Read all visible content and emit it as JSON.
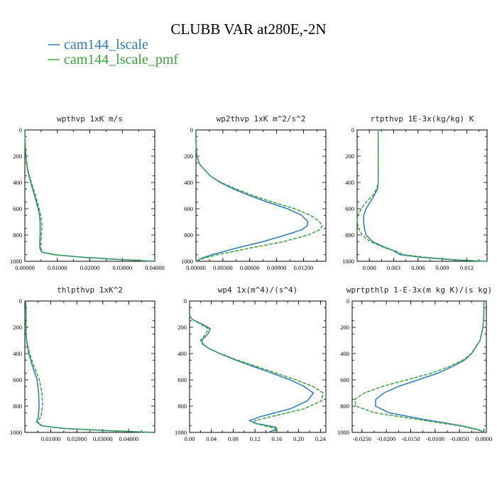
{
  "figure": {
    "title": "CLUBB VAR at280E,-2N",
    "legend": [
      {
        "label": "cam144_lscale",
        "color": "#2a7ab8"
      },
      {
        "label": "cam144_lscale_pmf",
        "color": "#3aa33a"
      }
    ]
  },
  "chart_data": [
    {
      "type": "line",
      "title": "wpthvp  1xK m/s",
      "xlim": [
        0,
        0.04
      ],
      "ylim": [
        1000,
        0
      ],
      "xticks": [
        "0.00000",
        "0.01000",
        "0.02000",
        "0.03000",
        "0.04000"
      ],
      "xtick_values": [
        0,
        0.01,
        0.02,
        0.03,
        0.04
      ],
      "yticks": [
        "0",
        "200",
        "400",
        "600",
        "800",
        "1000"
      ],
      "ytick_values": [
        0,
        200,
        400,
        600,
        800,
        1000
      ],
      "series": [
        {
          "name": "cam144_lscale",
          "color": "#2a7ab8",
          "dashed": false,
          "y": [
            0,
            100,
            200,
            300,
            400,
            500,
            600,
            650,
            700,
            750,
            800,
            850,
            900,
            930,
            950,
            970,
            985,
            995,
            1000
          ],
          "x": [
            0.0,
            0.0001,
            0.0003,
            0.0008,
            0.0018,
            0.003,
            0.0041,
            0.0045,
            0.0047,
            0.0047,
            0.0047,
            0.0046,
            0.0046,
            0.0052,
            0.009,
            0.018,
            0.028,
            0.036,
            0.0395
          ]
        },
        {
          "name": "cam144_lscale_pmf",
          "color": "#3aa33a",
          "dashed": true,
          "y": [
            0,
            100,
            200,
            300,
            400,
            500,
            600,
            650,
            700,
            750,
            800,
            850,
            900,
            930,
            950,
            970,
            985,
            995,
            1000
          ],
          "x": [
            0.0,
            0.0001,
            0.0003,
            0.0009,
            0.002,
            0.0033,
            0.0044,
            0.0049,
            0.0052,
            0.0052,
            0.0051,
            0.005,
            0.0049,
            0.0055,
            0.0093,
            0.0185,
            0.0285,
            0.0362,
            0.0398
          ]
        }
      ]
    },
    {
      "type": "line",
      "title": "wp2thvp  1xK m^2/s^2",
      "xlim": [
        0,
        0.0145
      ],
      "ylim": [
        1000,
        0
      ],
      "xticks": [
        "0.00000",
        "0.00300",
        "0.00600",
        "0.00900",
        "0.01200"
      ],
      "xtick_values": [
        0,
        0.003,
        0.006,
        0.009,
        0.012
      ],
      "yticks": [
        "0",
        "200",
        "400",
        "600",
        "800",
        "1000"
      ],
      "ytick_values": [
        0,
        200,
        400,
        600,
        800,
        1000
      ],
      "series": [
        {
          "name": "cam144_lscale",
          "color": "#2a7ab8",
          "dashed": false,
          "y": [
            0,
            100,
            200,
            260,
            300,
            350,
            400,
            450,
            500,
            550,
            600,
            650,
            700,
            730,
            760,
            800,
            850,
            900,
            950,
            980,
            1000
          ],
          "x": [
            0.0,
            0.0,
            0.0001,
            0.0004,
            0.0009,
            0.0016,
            0.0027,
            0.0042,
            0.006,
            0.008,
            0.0102,
            0.0118,
            0.0125,
            0.0124,
            0.0118,
            0.01,
            0.0075,
            0.0045,
            0.0018,
            0.0005,
            0.0
          ]
        },
        {
          "name": "cam144_lscale_pmf",
          "color": "#3aa33a",
          "dashed": true,
          "y": [
            0,
            100,
            200,
            260,
            300,
            350,
            400,
            450,
            500,
            550,
            600,
            650,
            700,
            730,
            760,
            800,
            850,
            900,
            950,
            980,
            1000
          ],
          "x": [
            0.0,
            0.0,
            0.0001,
            0.0004,
            0.0009,
            0.0016,
            0.0028,
            0.0045,
            0.0064,
            0.0086,
            0.011,
            0.0128,
            0.0138,
            0.0141,
            0.0138,
            0.0125,
            0.0098,
            0.006,
            0.0024,
            0.0007,
            0.0
          ]
        }
      ]
    },
    {
      "type": "line",
      "title": "rtpthvp  1E-3x(kg/kg) K",
      "xlim": [
        -0.0015,
        0.0145
      ],
      "ylim": [
        1000,
        0
      ],
      "xticks": [
        "0.000",
        "0.003",
        "0.006",
        "0.009",
        "0.012"
      ],
      "xtick_values": [
        0,
        0.003,
        0.006,
        0.009,
        0.012
      ],
      "yticks": [
        "0",
        "200",
        "400",
        "600",
        "800",
        "1000"
      ],
      "ytick_values": [
        0,
        200,
        400,
        600,
        800,
        1000
      ],
      "series": [
        {
          "name": "cam144_lscale",
          "color": "#2a7ab8",
          "dashed": false,
          "y": [
            0,
            100,
            200,
            300,
            400,
            450,
            500,
            550,
            600,
            650,
            700,
            750,
            800,
            850,
            900,
            920,
            950,
            970,
            990,
            1000
          ],
          "x": [
            0.0011,
            0.0011,
            0.0011,
            0.0011,
            0.0011,
            0.001,
            0.0006,
            0.0001,
            -0.0004,
            -0.0007,
            -0.0007,
            -0.0006,
            -0.0004,
            0.0004,
            0.0022,
            0.003,
            0.0038,
            0.0065,
            0.0105,
            0.0145
          ]
        },
        {
          "name": "cam144_lscale_pmf",
          "color": "#3aa33a",
          "dashed": true,
          "y": [
            0,
            100,
            200,
            300,
            400,
            450,
            500,
            550,
            600,
            650,
            700,
            750,
            800,
            850,
            900,
            920,
            950,
            970,
            990,
            1000
          ],
          "x": [
            0.0011,
            0.0011,
            0.0011,
            0.0011,
            0.0011,
            0.0009,
            0.0004,
            -0.0004,
            -0.001,
            -0.0014,
            -0.0015,
            -0.0013,
            -0.0009,
            0.0001,
            0.002,
            0.0032,
            0.0042,
            0.007,
            0.011,
            0.0145
          ]
        }
      ]
    },
    {
      "type": "line",
      "title": "thlpthvp  1xK^2",
      "xlim": [
        0,
        0.05
      ],
      "ylim": [
        1000,
        0
      ],
      "xticks": [
        "0.01000",
        "0.02000",
        "0.03000",
        "0.04000"
      ],
      "xtick_values": [
        0.01,
        0.02,
        0.03,
        0.04
      ],
      "yticks": [
        "0",
        "200",
        "400",
        "600",
        "800",
        "1000"
      ],
      "ytick_values": [
        0,
        200,
        400,
        600,
        800,
        1000
      ],
      "series": [
        {
          "name": "cam144_lscale",
          "color": "#2a7ab8",
          "dashed": false,
          "y": [
            0,
            100,
            180,
            200,
            215,
            300,
            400,
            500,
            600,
            700,
            800,
            880,
            920,
            950,
            970,
            985,
            1000
          ],
          "x": [
            0.0003,
            0.0005,
            0.0004,
            0.0008,
            0.0004,
            0.0006,
            0.0015,
            0.003,
            0.0047,
            0.0053,
            0.0055,
            0.0052,
            0.0045,
            0.0065,
            0.015,
            0.03,
            0.049
          ]
        },
        {
          "name": "cam144_lscale_pmf",
          "color": "#3aa33a",
          "dashed": true,
          "y": [
            0,
            100,
            180,
            200,
            215,
            300,
            400,
            500,
            600,
            700,
            800,
            880,
            920,
            950,
            970,
            985,
            1000
          ],
          "x": [
            0.0003,
            0.0005,
            0.0004,
            0.0009,
            0.0004,
            0.0007,
            0.0018,
            0.0036,
            0.0056,
            0.0066,
            0.0068,
            0.0062,
            0.0048,
            0.0067,
            0.0155,
            0.031,
            0.0495
          ]
        }
      ]
    },
    {
      "type": "line",
      "title": "wp4  1x(m^4)/(s^4)",
      "xlim": [
        0,
        0.25
      ],
      "ylim": [
        1000,
        0
      ],
      "xticks": [
        "0.00",
        "0.04",
        "0.08",
        "0.12",
        "0.16",
        "0.20",
        "0.24"
      ],
      "xtick_values": [
        0,
        0.04,
        0.08,
        0.12,
        0.16,
        0.2,
        0.24
      ],
      "yticks": [
        "0",
        "200",
        "400",
        "600",
        "800",
        "1000"
      ],
      "ytick_values": [
        0,
        200,
        400,
        600,
        800,
        1000
      ],
      "series": [
        {
          "name": "cam144_lscale",
          "color": "#2a7ab8",
          "dashed": false,
          "y": [
            110,
            140,
            180,
            210,
            250,
            300,
            330,
            360,
            400,
            450,
            500,
            550,
            600,
            650,
            700,
            760,
            820,
            880,
            910,
            930,
            960,
            975,
            990,
            1000
          ],
          "x": [
            0.0,
            0.005,
            0.025,
            0.038,
            0.034,
            0.022,
            0.025,
            0.035,
            0.055,
            0.085,
            0.118,
            0.152,
            0.184,
            0.21,
            0.227,
            0.216,
            0.185,
            0.13,
            0.11,
            0.12,
            0.158,
            0.16,
            0.15,
            0.145
          ]
        },
        {
          "name": "cam144_lscale_pmf",
          "color": "#3aa33a",
          "dashed": true,
          "y": [
            110,
            140,
            180,
            210,
            250,
            300,
            330,
            360,
            400,
            450,
            500,
            550,
            600,
            650,
            700,
            760,
            820,
            880,
            910,
            930,
            960,
            975,
            990,
            1000
          ],
          "x": [
            0.0,
            0.005,
            0.022,
            0.034,
            0.03,
            0.02,
            0.024,
            0.035,
            0.056,
            0.088,
            0.124,
            0.16,
            0.195,
            0.226,
            0.245,
            0.242,
            0.21,
            0.15,
            0.12,
            0.118,
            0.148,
            0.162,
            0.155,
            0.15
          ]
        }
      ]
    },
    {
      "type": "line",
      "title": "wprtpthlp  1-E-3x(m kg K)/(s kg)",
      "xlim": [
        -0.027,
        0.0005
      ],
      "ylim": [
        1000,
        0
      ],
      "xticks": [
        "-0.0250",
        "-0.0200",
        "-0.0150",
        "-0.0100",
        "-0.0050",
        "0.0000"
      ],
      "xtick_values": [
        -0.025,
        -0.02,
        -0.015,
        -0.01,
        -0.005,
        0
      ],
      "yticks": [
        "0",
        "200",
        "400",
        "600",
        "800",
        "1000"
      ],
      "ytick_values": [
        0,
        200,
        400,
        600,
        800,
        1000
      ],
      "series": [
        {
          "name": "cam144_lscale",
          "color": "#2a7ab8",
          "dashed": false,
          "y": [
            0,
            100,
            200,
            300,
            400,
            450,
            500,
            550,
            600,
            650,
            700,
            750,
            800,
            850,
            900,
            950,
            980,
            1000
          ],
          "x": [
            0.0,
            0.0,
            -0.0002,
            -0.0008,
            -0.0025,
            -0.004,
            -0.0065,
            -0.0095,
            -0.0135,
            -0.0175,
            -0.0205,
            -0.0222,
            -0.0222,
            -0.0195,
            -0.0125,
            -0.0045,
            -0.001,
            0.0
          ]
        },
        {
          "name": "cam144_lscale_pmf",
          "color": "#3aa33a",
          "dashed": true,
          "y": [
            0,
            100,
            200,
            300,
            400,
            450,
            500,
            550,
            600,
            650,
            700,
            750,
            800,
            850,
            900,
            950,
            980,
            1000
          ],
          "x": [
            0.0,
            0.0,
            -0.0002,
            -0.0008,
            -0.0026,
            -0.0043,
            -0.0072,
            -0.0108,
            -0.0158,
            -0.0208,
            -0.0245,
            -0.0265,
            -0.0262,
            -0.0225,
            -0.0138,
            -0.005,
            -0.0012,
            0.0
          ]
        }
      ]
    }
  ]
}
